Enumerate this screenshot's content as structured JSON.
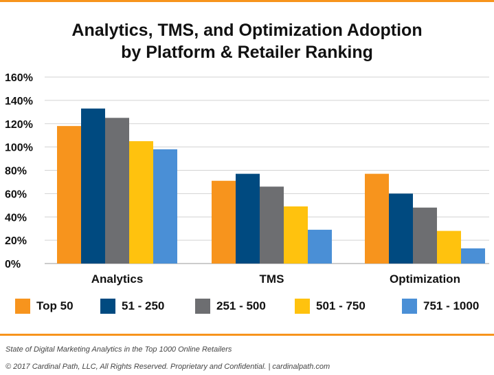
{
  "chart_data": {
    "type": "bar",
    "title_line1": "Analytics, TMS, and Optimization Adoption",
    "title_line2": "by Platform & Retailer Ranking",
    "categories": [
      "Analytics",
      "TMS",
      "Optimization"
    ],
    "series": [
      {
        "name": "Top 50",
        "color": "#f7941d",
        "values": [
          118,
          71,
          77
        ]
      },
      {
        "name": "51 - 250",
        "color": "#004a80",
        "values": [
          133,
          77,
          60
        ]
      },
      {
        "name": "251 - 500",
        "color": "#6d6e71",
        "values": [
          125,
          66,
          48
        ]
      },
      {
        "name": "501 - 750",
        "color": "#ffc20e",
        "values": [
          105,
          49,
          28
        ]
      },
      {
        "name": "751 - 1000",
        "color": "#4a8fd6",
        "values": [
          98,
          29,
          13
        ]
      }
    ],
    "ylim": [
      0,
      160
    ],
    "yticks": [
      "0%",
      "20%",
      "40%",
      "60%",
      "80%",
      "100%",
      "120%",
      "140%",
      "160%"
    ],
    "grid": true,
    "legend_position": "bottom"
  },
  "footer": {
    "source": "State of Digital Marketing Analytics in the Top 1000 Online Retailers",
    "copyright": "© 2017 Cardinal Path, LLC, All Rights Reserved. Proprietary and Confidential.  |  cardinalpath.com"
  }
}
